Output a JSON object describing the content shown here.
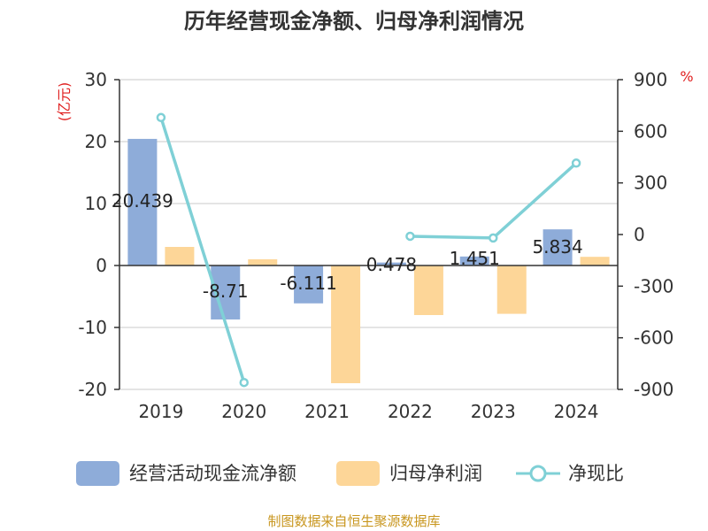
{
  "title": "历年经营现金净额、归母净利润情况",
  "source": "制图数据来自恒生聚源数据库",
  "colors": {
    "cashflow": "#8eacd9",
    "netprofit": "#fdd698",
    "ratio": "#7fd0d6",
    "axis": "#333333",
    "grid": "#c8c8c8",
    "unit": "#e02020"
  },
  "chart_data": {
    "type": "bar",
    "title": "历年经营现金净额、归母净利润情况",
    "categories": [
      "2019",
      "2020",
      "2021",
      "2022",
      "2023",
      "2024"
    ],
    "series": [
      {
        "name": "经营活动现金流净额",
        "type": "bar",
        "axis": "left",
        "values": [
          20.439,
          -8.71,
          -6.111,
          0.478,
          1.451,
          5.834
        ],
        "labels": [
          "20.439",
          "-8.71",
          "-6.111",
          "0.478",
          "1.451",
          "5.834"
        ]
      },
      {
        "name": "归母净利润",
        "type": "bar",
        "axis": "left",
        "values": [
          3.0,
          1.0,
          -19.0,
          -8.0,
          -7.8,
          1.4
        ]
      },
      {
        "name": "净现比",
        "type": "line",
        "axis": "right",
        "values": [
          680,
          -860,
          null,
          -10,
          -20,
          415
        ]
      }
    ],
    "left_axis": {
      "label": "(亿元)",
      "min": -20,
      "max": 30,
      "ticks": [
        30,
        20,
        10,
        0,
        -10,
        -20
      ],
      "tick_labels": [
        "30",
        "20",
        "10",
        "0",
        "-10",
        "-20"
      ]
    },
    "right_axis": {
      "label": "%",
      "min": -900,
      "max": 900,
      "ticks": [
        900,
        600,
        300,
        0,
        -300,
        -600,
        -900
      ],
      "tick_labels": [
        "900",
        "600",
        "300",
        "0",
        "-300",
        "-600",
        "-900"
      ]
    },
    "grid": true,
    "legend_position": "bottom"
  }
}
